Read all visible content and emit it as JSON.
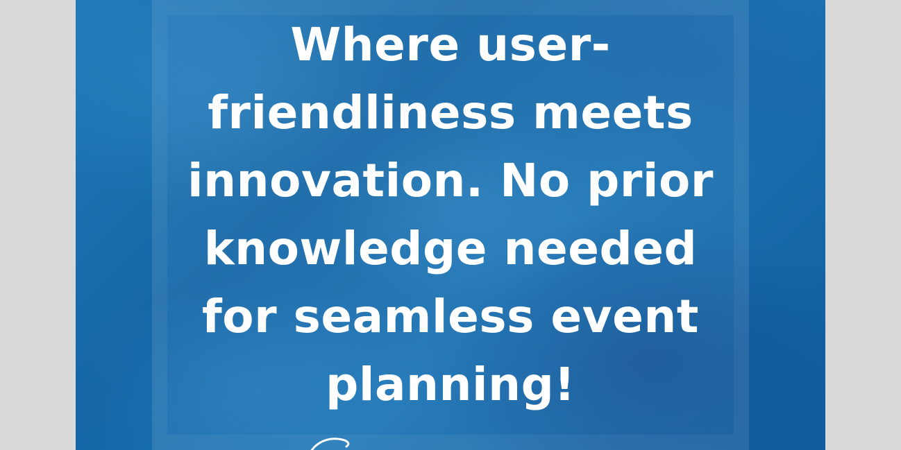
{
  "quote": {
    "lines": [
      "Where user-",
      "friendliness meets",
      "innovation. No prior",
      "knowledge needed",
      "for seamless event",
      "planning!"
    ]
  },
  "colors": {
    "page_background": "#d9d9d9",
    "poster_blue": "#1a6fb0",
    "text": "#ffffff"
  }
}
